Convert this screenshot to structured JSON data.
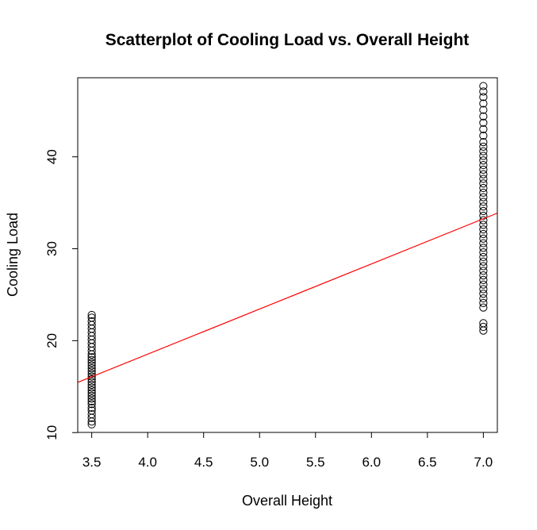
{
  "chart_data": {
    "type": "scatter",
    "title": "Scatterplot of Cooling Load vs. Overall Height",
    "xlabel": "Overall Height",
    "ylabel": "Cooling Load",
    "xlim": [
      3.375,
      7.125
    ],
    "ylim": [
      10.02,
      48.6
    ],
    "x_ticks": [
      3.5,
      4.0,
      4.5,
      5.0,
      5.5,
      6.0,
      6.5,
      7.0
    ],
    "x_tick_labels": [
      "3.5",
      "4.0",
      "4.5",
      "5.0",
      "5.5",
      "6.0",
      "6.5",
      "7.0"
    ],
    "y_ticks": [
      10,
      20,
      30,
      40
    ],
    "y_tick_labels": [
      "10",
      "20",
      "30",
      "40"
    ],
    "grid": false,
    "series": [
      {
        "marker": "open-circle",
        "color": "#000000",
        "points": [
          {
            "x": 3.5,
            "y": 10.9
          },
          {
            "x": 3.5,
            "y": 11.2
          },
          {
            "x": 3.5,
            "y": 11.6
          },
          {
            "x": 3.5,
            "y": 12.0
          },
          {
            "x": 3.5,
            "y": 12.4
          },
          {
            "x": 3.5,
            "y": 12.7
          },
          {
            "x": 3.5,
            "y": 13.1
          },
          {
            "x": 3.5,
            "y": 13.4
          },
          {
            "x": 3.5,
            "y": 13.7
          },
          {
            "x": 3.5,
            "y": 14.0
          },
          {
            "x": 3.5,
            "y": 14.3
          },
          {
            "x": 3.5,
            "y": 14.6
          },
          {
            "x": 3.5,
            "y": 14.9
          },
          {
            "x": 3.5,
            "y": 15.2
          },
          {
            "x": 3.5,
            "y": 15.5
          },
          {
            "x": 3.5,
            "y": 15.8
          },
          {
            "x": 3.5,
            "y": 16.1
          },
          {
            "x": 3.5,
            "y": 16.4
          },
          {
            "x": 3.5,
            "y": 16.7
          },
          {
            "x": 3.5,
            "y": 17.0
          },
          {
            "x": 3.5,
            "y": 17.3
          },
          {
            "x": 3.5,
            "y": 17.6
          },
          {
            "x": 3.5,
            "y": 17.9
          },
          {
            "x": 3.5,
            "y": 18.2
          },
          {
            "x": 3.5,
            "y": 18.5
          },
          {
            "x": 3.5,
            "y": 18.9
          },
          {
            "x": 3.5,
            "y": 19.3
          },
          {
            "x": 3.5,
            "y": 19.7
          },
          {
            "x": 3.5,
            "y": 20.1
          },
          {
            "x": 3.5,
            "y": 20.5
          },
          {
            "x": 3.5,
            "y": 20.9
          },
          {
            "x": 3.5,
            "y": 21.3
          },
          {
            "x": 3.5,
            "y": 21.7
          },
          {
            "x": 3.5,
            "y": 22.1
          },
          {
            "x": 3.5,
            "y": 22.5
          },
          {
            "x": 3.5,
            "y": 22.8
          },
          {
            "x": 7.0,
            "y": 21.1
          },
          {
            "x": 7.0,
            "y": 21.5
          },
          {
            "x": 7.0,
            "y": 21.9
          },
          {
            "x": 7.0,
            "y": 23.6
          },
          {
            "x": 7.0,
            "y": 24.1
          },
          {
            "x": 7.0,
            "y": 24.6
          },
          {
            "x": 7.0,
            "y": 25.1
          },
          {
            "x": 7.0,
            "y": 25.6
          },
          {
            "x": 7.0,
            "y": 26.1
          },
          {
            "x": 7.0,
            "y": 26.6
          },
          {
            "x": 7.0,
            "y": 27.1
          },
          {
            "x": 7.0,
            "y": 27.6
          },
          {
            "x": 7.0,
            "y": 28.1
          },
          {
            "x": 7.0,
            "y": 28.6
          },
          {
            "x": 7.0,
            "y": 29.1
          },
          {
            "x": 7.0,
            "y": 29.6
          },
          {
            "x": 7.0,
            "y": 30.1
          },
          {
            "x": 7.0,
            "y": 30.6
          },
          {
            "x": 7.0,
            "y": 31.1
          },
          {
            "x": 7.0,
            "y": 31.6
          },
          {
            "x": 7.0,
            "y": 32.1
          },
          {
            "x": 7.0,
            "y": 32.6
          },
          {
            "x": 7.0,
            "y": 33.1
          },
          {
            "x": 7.0,
            "y": 33.6
          },
          {
            "x": 7.0,
            "y": 34.1
          },
          {
            "x": 7.0,
            "y": 34.6
          },
          {
            "x": 7.0,
            "y": 35.1
          },
          {
            "x": 7.0,
            "y": 35.6
          },
          {
            "x": 7.0,
            "y": 36.1
          },
          {
            "x": 7.0,
            "y": 36.6
          },
          {
            "x": 7.0,
            "y": 37.1
          },
          {
            "x": 7.0,
            "y": 37.6
          },
          {
            "x": 7.0,
            "y": 38.1
          },
          {
            "x": 7.0,
            "y": 38.6
          },
          {
            "x": 7.0,
            "y": 39.1
          },
          {
            "x": 7.0,
            "y": 39.6
          },
          {
            "x": 7.0,
            "y": 40.1
          },
          {
            "x": 7.0,
            "y": 40.6
          },
          {
            "x": 7.0,
            "y": 41.1
          },
          {
            "x": 7.0,
            "y": 41.6
          },
          {
            "x": 7.0,
            "y": 42.3
          },
          {
            "x": 7.0,
            "y": 43.0
          },
          {
            "x": 7.0,
            "y": 43.7
          },
          {
            "x": 7.0,
            "y": 44.4
          },
          {
            "x": 7.0,
            "y": 45.1
          },
          {
            "x": 7.0,
            "y": 45.8
          },
          {
            "x": 7.0,
            "y": 46.5
          },
          {
            "x": 7.0,
            "y": 47.1
          },
          {
            "x": 7.0,
            "y": 47.7
          }
        ]
      }
    ],
    "regression_line": {
      "color": "#ff0000",
      "intercept": -1.11,
      "slope": 4.91
    }
  }
}
